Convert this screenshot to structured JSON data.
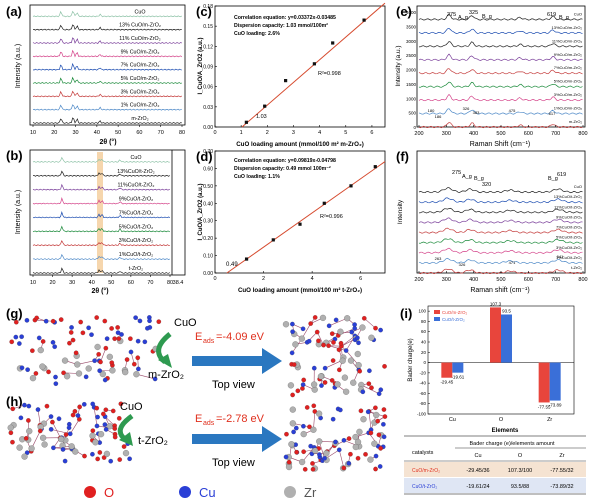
{
  "panel_labels": {
    "a": "(a)",
    "b": "(b)",
    "c": "(c)",
    "d": "(d)",
    "e": "(e)",
    "f": "(f)",
    "g": "(g)",
    "h": "(h)",
    "i": "(i)"
  },
  "xrd_a": {
    "xlabel": "2θ (°)",
    "ylabel": "Intensity (a.u.)",
    "ticks": [
      "10",
      "20",
      "30",
      "40",
      "50",
      "60",
      "70",
      "80"
    ],
    "labels": [
      "CuO",
      "13% CuO/m-ZrO₂",
      "11% CuO/m-ZrO₂",
      "9% CuO/m-ZrO₂",
      "7% CuO/m-ZrO₂",
      "5% CuO/m-ZrO₂",
      "3% CuO/m-ZrO₂",
      "1% CuO/m-ZrO₂",
      "m-ZrO₂"
    ]
  },
  "xrd_b": {
    "xlabel": "2θ (°)",
    "ylabel": "Intensity (a.u.)",
    "ticks": [
      "10",
      "20",
      "30",
      "40",
      "50",
      "60",
      "70",
      "80"
    ],
    "ticks_right": [
      "38.4"
    ],
    "labels": [
      "CuO",
      "13%CuO/t-ZrO₂",
      "11%CuO/t-ZrO₂",
      "9%CuO/t-ZrO₂",
      "7%CuO/t-ZrO₂",
      "5%CuO/t-ZrO₂",
      "3%CuO/t-ZrO₂",
      "1%CuO/t-ZrO₂",
      "t-ZrO₂"
    ]
  },
  "chart_data": [
    {
      "type": "scatter",
      "panel": "(c)",
      "xlabel": "CuO loading amount (mmol/100 m² m-ZrO₂)",
      "ylabel": "I_CuO/A_ZrO2 (a.u.)",
      "xlim": [
        0,
        6.5
      ],
      "ylim": [
        0,
        0.18
      ],
      "xticks": [
        0,
        1,
        2,
        3,
        4,
        5,
        6
      ],
      "yticks": [
        0.0,
        0.03,
        0.06,
        0.09,
        0.12,
        0.15,
        0.18
      ],
      "x": [
        1.2,
        1.9,
        2.7,
        3.8,
        4.5,
        5.7
      ],
      "y": [
        0.007,
        0.031,
        0.069,
        0.094,
        0.125,
        0.159
      ],
      "fit": {
        "slope": 0.03372,
        "intercept": -0.03485
      },
      "annotations": [
        "Correlation equation: y=0.03372x-0.03485",
        "Dispersion capacity: 1.03 mmol/100m²",
        "CuO loading: 2.6%"
      ],
      "r2": "R²=0.998",
      "intercept_label": "1.03"
    },
    {
      "type": "scatter",
      "panel": "(d)",
      "xlabel": "CuO loading amount (mmol/100 m² t-ZrO₂)",
      "ylabel": "I_CuO/A_ZrO2 (a.u.)",
      "xlim": [
        0,
        7
      ],
      "ylim": [
        0,
        0.7
      ],
      "xticks": [
        0,
        2,
        4,
        6
      ],
      "yticks": [
        0.0,
        0.1,
        0.2,
        0.3,
        0.4,
        0.5,
        0.6,
        0.7
      ],
      "x": [
        1.3,
        2.4,
        3.5,
        4.5,
        5.6,
        6.6
      ],
      "y": [
        0.08,
        0.19,
        0.28,
        0.4,
        0.5,
        0.61
      ],
      "fit": {
        "slope": 0.09819,
        "intercept": -0.04798
      },
      "annotations": [
        "Correlation equation: y=0.09819x-0.04798",
        "Dispersion capacity: 0.49 mmol 100m⁻²",
        "CuO loading: 1.1%"
      ],
      "r2": "R²=0.996",
      "intercept_label": "0.49"
    },
    {
      "type": "bar",
      "panel": "(i)",
      "categories": [
        "Cu",
        "O",
        "Zr"
      ],
      "xlabel": "Elements",
      "ylabel": "Bader charge(e)",
      "ylim": [
        -100,
        110
      ],
      "yticks": [
        -100,
        -80,
        -60,
        -40,
        -20,
        0,
        20,
        40,
        60,
        80,
        100
      ],
      "series": [
        {
          "name": "CuO/m-ZrO₂",
          "values": [
            -29.45,
            107.3,
            -77.55
          ],
          "color": "#e8453c"
        },
        {
          "name": "CuO/t-ZrO₂",
          "values": [
            -19.61,
            93.5,
            -73.89
          ],
          "color": "#3a6fd8"
        }
      ],
      "value_labels": [
        [
          "-29.45",
          "107.3",
          "-77.55"
        ],
        [
          "-19.61",
          "93.5",
          "-73.89"
        ]
      ]
    }
  ],
  "raman_e": {
    "xlabel": "Raman Shift (cm⁻¹)",
    "ylabel": "Intensity (a.u.)",
    "xticks": [
      "200",
      "300",
      "400",
      "500",
      "600",
      "700",
      "800"
    ],
    "yticks": [
      "0",
      "500",
      "1000",
      "1500",
      "2000",
      "2500",
      "3000",
      "3500",
      "4000"
    ],
    "peaks": [
      "275",
      "A_g",
      "325",
      "B_g",
      "619",
      "B_g"
    ],
    "bottom_peaks": [
      "180",
      "186",
      "326",
      "383",
      "475",
      "617"
    ],
    "labels": [
      "CuO",
      "13%CuO/m-ZrO₂",
      "11%CuO/m-ZrO₂",
      "9%CuO/m-ZrO₂",
      "7%CuO/m-ZrO₂",
      "5%CuO/m-ZrO₂",
      "3%CuO/m-ZrO₂",
      "1%CuO/m-ZrO₂",
      "m-ZrO₂"
    ]
  },
  "raman_f": {
    "xlabel": "Raman shift (cm⁻¹)",
    "ylabel": "Intensity",
    "xticks": [
      "200",
      "300",
      "400",
      "500",
      "600",
      "700",
      "800"
    ],
    "peaks": [
      "275",
      "A_g",
      "B_g",
      "320",
      "B_g",
      "619"
    ],
    "bottom_peaks": [
      "263",
      "326",
      "471",
      "641"
    ],
    "labels": [
      "CuO",
      "13%CuO/t-ZrO₂",
      "11%CuO/t-ZrO₂",
      "9%CuO/t-ZrO₂",
      "7%CuO/t-ZrO₂",
      "5%CuO/t-ZrO₂",
      "3%CuO/t-ZrO₂",
      "1%CuO/t-ZrO₂",
      "t-ZrO₂"
    ]
  },
  "adsorption_g": {
    "cuo": "CuO",
    "support": "m-ZrO₂",
    "energy": "=-4.09 eV",
    "view": "Top view",
    "eads": "E",
    "sub": "ads"
  },
  "adsorption_h": {
    "cuo": "CuO",
    "support": "t-ZrO₂",
    "energy": "=-2.78 eV",
    "view": "Top view",
    "eads": "E",
    "sub": "ads"
  },
  "legend_atoms": [
    {
      "symbol": "O",
      "color": "#e02020"
    },
    {
      "symbol": "Cu",
      "color": "#2a3fd6"
    },
    {
      "symbol": "Zr",
      "color": "#b0b0b0"
    }
  ],
  "bader_table": {
    "title": "Bader charge (e)/elements amount",
    "col_catalysts": "catalysts",
    "cols": [
      "Cu",
      "O",
      "Zr"
    ],
    "rows": [
      {
        "name": "CuO/m-ZrO₂",
        "values": [
          "-29.45/36",
          "107.3/100",
          "-77.55/32"
        ]
      },
      {
        "name": "CuO/t-ZrO₂",
        "values": [
          "-19.61/24",
          "93.5/88",
          "-73.89/32"
        ]
      }
    ]
  }
}
